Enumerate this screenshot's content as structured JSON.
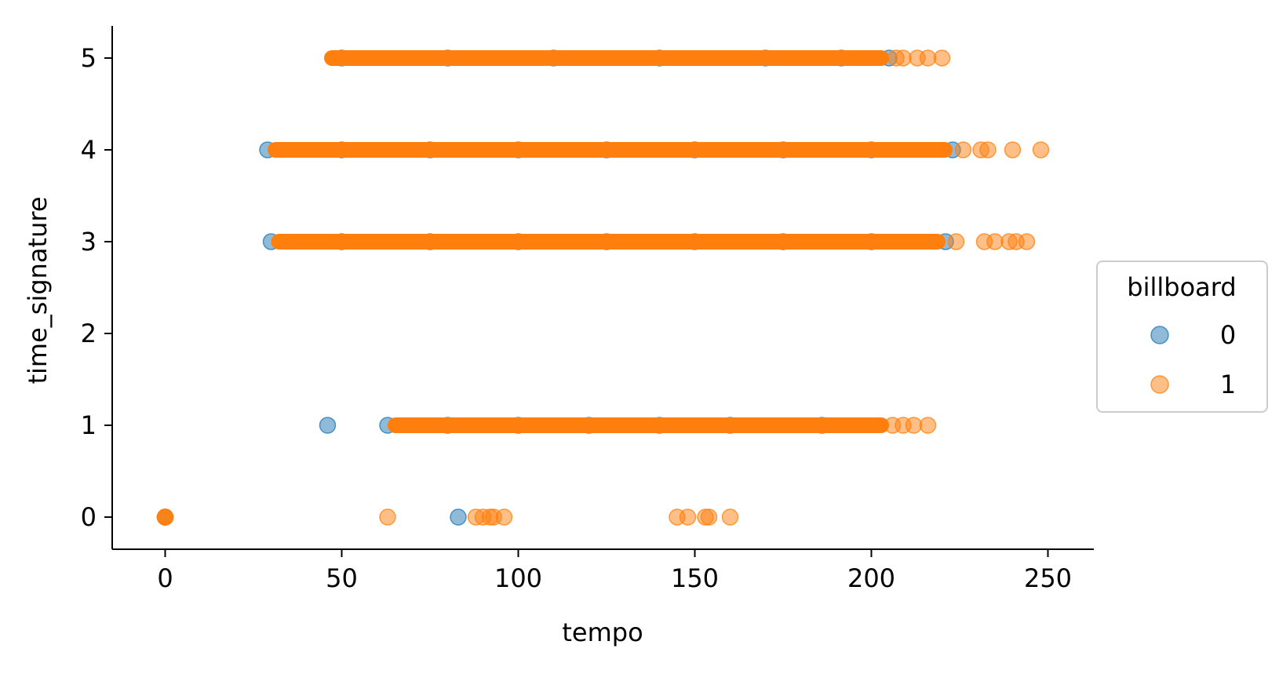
{
  "chart_data": {
    "type": "scatter",
    "title": "",
    "xlabel": "tempo",
    "ylabel": "time_signature",
    "xlim": [
      -15,
      263
    ],
    "ylim": [
      -0.35,
      5.35
    ],
    "xticks": [
      0,
      50,
      100,
      150,
      200,
      250
    ],
    "yticks": [
      0,
      1,
      2,
      3,
      4,
      5
    ],
    "grid": false,
    "marker_alpha": 0.5,
    "legend": {
      "title": "billboard",
      "placement": "center-right-outside"
    },
    "series": [
      {
        "name": "0",
        "color": "#1f77b4",
        "points": [
          [
            0,
            0
          ],
          [
            83.0,
            0
          ],
          [
            46,
            1
          ],
          [
            63,
            1
          ],
          [
            80,
            1
          ],
          [
            100,
            1
          ],
          [
            120,
            1
          ],
          [
            140,
            1
          ],
          [
            160,
            1
          ],
          [
            186,
            1
          ],
          [
            30,
            3
          ],
          [
            50,
            3
          ],
          [
            75,
            3
          ],
          [
            100,
            3
          ],
          [
            125,
            3
          ],
          [
            150,
            3
          ],
          [
            175,
            3
          ],
          [
            200,
            3
          ],
          [
            221,
            3
          ],
          [
            29,
            4
          ],
          [
            50,
            4
          ],
          [
            75,
            4
          ],
          [
            100,
            4
          ],
          [
            125,
            4
          ],
          [
            150,
            4
          ],
          [
            175,
            4
          ],
          [
            200,
            4
          ],
          [
            223,
            4
          ],
          [
            50,
            5
          ],
          [
            80,
            5
          ],
          [
            110,
            5
          ],
          [
            140,
            5
          ],
          [
            170,
            5
          ],
          [
            191.5,
            5
          ],
          [
            205,
            5
          ]
        ]
      },
      {
        "name": "1",
        "color": "#ff7f0e",
        "ranges": [
          {
            "y": 1,
            "x_min": 63,
            "x_max": 205
          },
          {
            "y": 3,
            "x_min": 30,
            "x_max": 221
          },
          {
            "y": 4,
            "x_min": 29,
            "x_max": 223
          },
          {
            "y": 5,
            "x_min": 45,
            "x_max": 205
          }
        ],
        "points": [
          [
            0,
            0
          ],
          [
            0,
            0
          ],
          [
            0,
            0
          ],
          [
            0,
            0
          ],
          [
            63,
            0
          ],
          [
            88,
            0
          ],
          [
            90,
            0
          ],
          [
            92,
            0
          ],
          [
            93,
            0
          ],
          [
            96,
            0
          ],
          [
            145,
            0
          ],
          [
            148,
            0
          ],
          [
            153,
            0
          ],
          [
            154,
            0
          ],
          [
            160,
            0
          ],
          [
            206,
            1
          ],
          [
            209,
            1
          ],
          [
            212,
            1
          ],
          [
            216,
            1
          ],
          [
            224,
            3
          ],
          [
            232,
            3
          ],
          [
            235,
            3
          ],
          [
            239,
            3
          ],
          [
            241,
            3
          ],
          [
            244,
            3
          ],
          [
            226,
            4
          ],
          [
            231,
            4
          ],
          [
            233,
            4
          ],
          [
            240,
            4
          ],
          [
            248,
            4
          ],
          [
            207,
            5
          ],
          [
            209,
            5
          ],
          [
            213,
            5
          ],
          [
            216,
            5
          ],
          [
            220,
            5
          ]
        ]
      }
    ]
  }
}
